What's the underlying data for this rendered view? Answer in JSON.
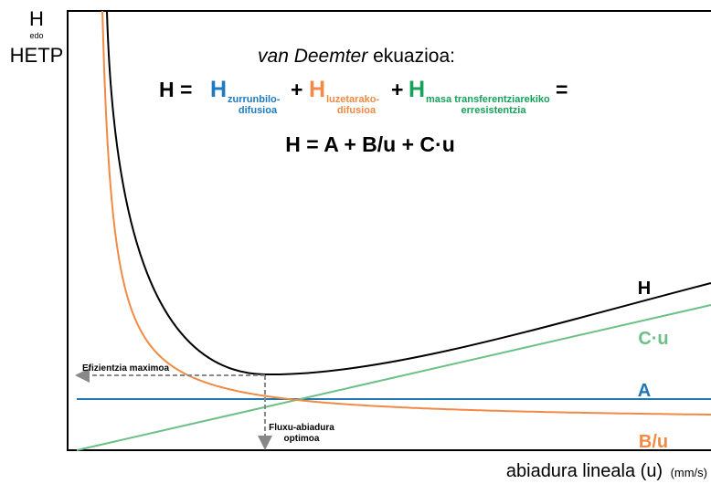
{
  "y_axis": {
    "main": "H",
    "joiner": "edo",
    "alt": "HETP"
  },
  "x_axis": {
    "label": "abiadura lineala (u)",
    "unit": "(mm/s)"
  },
  "equation": {
    "title_italic": "van Deemter",
    "title_rest": "ekuazioa:",
    "lhs": "H =",
    "terms": [
      {
        "symbol": "H",
        "sub1": "zurrunbilo-",
        "sub2": "difusioa",
        "op": "+"
      },
      {
        "symbol": "H",
        "sub1": "luzetarako-",
        "sub2": "difusioa",
        "op": "+"
      },
      {
        "symbol": "H",
        "sub1": "masa transferentziarekiko",
        "sub2": "erresistentzia",
        "op": "="
      }
    ],
    "formula": "H = A + B/u + C·u"
  },
  "curves": {
    "H": "H",
    "C": "C·u",
    "A": "A",
    "B": "B/u"
  },
  "annotations": {
    "max_efficiency": "Efizientzia maximoa",
    "optimal_flow_1": "Fluxu-abiadura",
    "optimal_flow_2": "optimoa"
  }
}
